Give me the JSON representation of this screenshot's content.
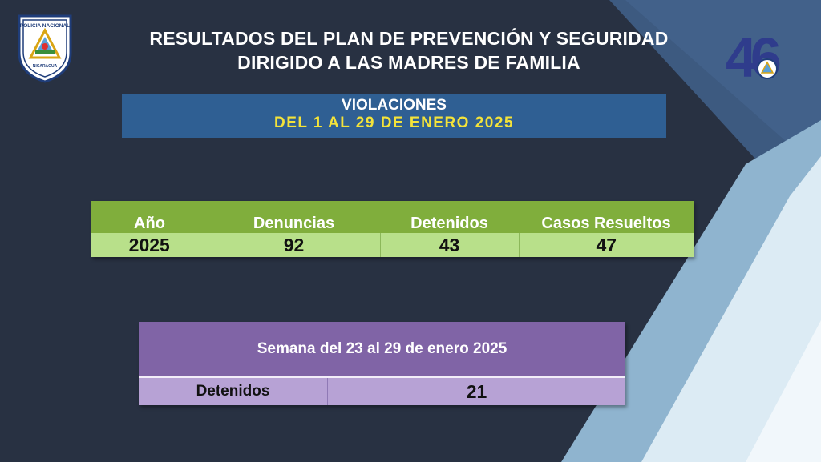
{
  "logos": {
    "left_text_top": "POLICIA NACIONAL",
    "left_text_bottom": "NICARAGUA",
    "right_number": "46"
  },
  "header": {
    "title_line1": "RESULTADOS DEL PLAN DE PREVENCIÓN Y SEGURIDAD",
    "title_line2": "DIRIGIDO A LAS MADRES DE FAMILIA",
    "subtitle_line1": "VIOLACIONES",
    "subtitle_line2": "DEL 1 AL 29 DE ENERO 2025"
  },
  "stats_table": {
    "columns": [
      "Año",
      "Denuncias",
      "Detenidos",
      "Casos Resueltos"
    ],
    "row": [
      "2025",
      "92",
      "43",
      "47"
    ]
  },
  "week_table": {
    "title": "Semana del 23 al 29 de enero 2025",
    "label": "Detenidos",
    "value": "21"
  },
  "colors": {
    "background": "#283142",
    "subtitle_box": "#2f5f93",
    "subtitle_accent": "#f4e33a",
    "green_header": "#80ae3c",
    "green_row": "#b8e08a",
    "purple_header": "#8064a6",
    "purple_row": "#b7a2d5"
  }
}
